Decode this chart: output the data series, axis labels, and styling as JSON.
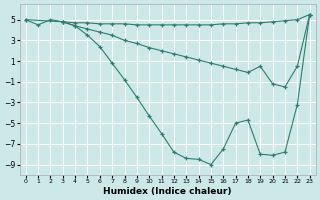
{
  "bg_color": "#cce8e8",
  "grid_color": "#ffffff",
  "line_color": "#2e7d6e",
  "xlabel": "Humidex (Indice chaleur)",
  "xlim": [
    -0.5,
    23.5
  ],
  "ylim": [
    -10.0,
    6.5
  ],
  "xticks": [
    0,
    1,
    2,
    3,
    4,
    5,
    6,
    7,
    8,
    9,
    10,
    11,
    12,
    13,
    14,
    15,
    16,
    17,
    18,
    19,
    20,
    21,
    22,
    23
  ],
  "yticks": [
    -9,
    -7,
    -5,
    -3,
    -1,
    1,
    3,
    5
  ],
  "line_flat_x": [
    0,
    3,
    4,
    5,
    6,
    7,
    8,
    9,
    10,
    11,
    12,
    13,
    14,
    15,
    16,
    17,
    18,
    19,
    20,
    21,
    22,
    23
  ],
  "line_flat_y": [
    5.0,
    4.8,
    4.7,
    4.7,
    4.6,
    4.6,
    4.6,
    4.5,
    4.5,
    4.5,
    4.5,
    4.5,
    4.5,
    4.5,
    4.6,
    4.6,
    4.7,
    4.7,
    4.8,
    4.9,
    5.0,
    5.5
  ],
  "line_curve_x": [
    0,
    1,
    2,
    3,
    4,
    5,
    6,
    7,
    8,
    9,
    10,
    11,
    12,
    13,
    14,
    15,
    16,
    17,
    18,
    19,
    20,
    21,
    22,
    23
  ],
  "line_curve_y": [
    5.0,
    4.5,
    5.0,
    4.8,
    4.4,
    3.5,
    2.4,
    0.8,
    -0.8,
    -2.5,
    -4.3,
    -6.0,
    -7.8,
    -8.4,
    -8.5,
    -9.0,
    -7.5,
    -5.0,
    -4.7,
    -8.0,
    -8.1,
    -7.8,
    -3.2,
    5.5
  ],
  "line_diag_x": [
    3,
    4,
    5,
    6,
    7,
    8,
    9,
    10,
    11,
    12,
    13,
    14,
    15,
    16,
    17,
    18,
    19,
    20,
    21,
    22,
    23
  ],
  "line_diag_y": [
    4.8,
    4.4,
    4.1,
    3.8,
    3.5,
    3.0,
    2.7,
    2.3,
    2.0,
    1.7,
    1.4,
    1.1,
    0.8,
    0.5,
    0.2,
    -0.1,
    0.5,
    -1.2,
    -1.5,
    0.5,
    5.5
  ]
}
